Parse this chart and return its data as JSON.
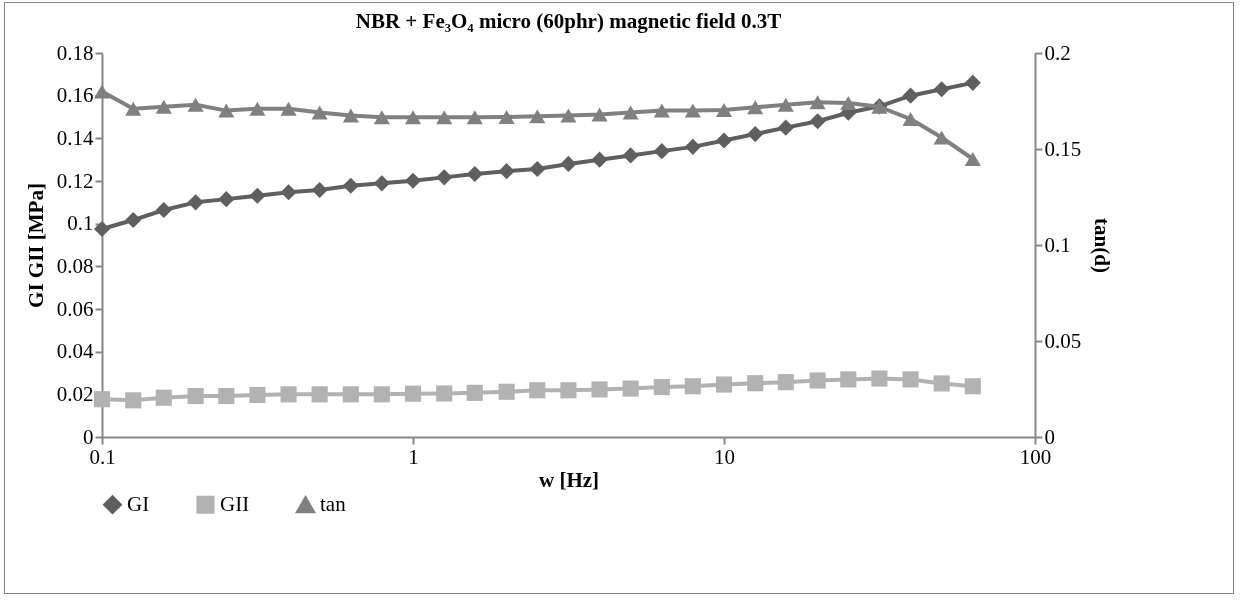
{
  "chart_data": {
    "type": "line",
    "title": "NBR + Fe₃O₄ micro (60phr) magnetic field 0.3T",
    "xlabel": "w [Hz]",
    "ylabel": "GI GII [MPa]",
    "y2label": "tan(d)",
    "x": [
      0.1,
      0.126,
      0.158,
      0.2,
      0.251,
      0.316,
      0.398,
      0.501,
      0.631,
      0.794,
      1,
      1.26,
      1.58,
      2,
      2.51,
      3.16,
      3.98,
      5.01,
      6.31,
      7.94,
      10,
      12.6,
      15.8,
      20,
      25.1,
      31.6,
      39.8,
      50.1,
      63.1
    ],
    "log": "x",
    "xlim": [
      0.1,
      100
    ],
    "xticks": [
      0.1,
      1,
      10,
      100
    ],
    "ylim": [
      0,
      0.18
    ],
    "yticks": [
      0,
      0.02,
      0.04,
      0.06,
      0.08,
      0.1,
      0.12,
      0.14,
      0.16,
      0.18
    ],
    "y2lim": [
      0,
      0.2
    ],
    "y2ticks": [
      0,
      0.05,
      0.1,
      0.15,
      0.2
    ],
    "legend": "bottom",
    "series": [
      {
        "name": "GI",
        "color": "#5f5f5f",
        "marker": "diamond",
        "values": [
          0.0975,
          0.1017,
          0.1064,
          0.11,
          0.1115,
          0.1131,
          0.1147,
          0.1158,
          0.1178,
          0.1189,
          0.1201,
          0.1217,
          0.1233,
          0.1246,
          0.1256,
          0.128,
          0.13,
          0.132,
          0.134,
          0.136,
          0.139,
          0.142,
          0.145,
          0.148,
          0.152,
          0.155,
          0.16,
          0.163,
          0.166
        ]
      },
      {
        "name": "GII",
        "color": "#b2b2b2",
        "marker": "square",
        "values": [
          0.0177,
          0.0172,
          0.0184,
          0.0192,
          0.0192,
          0.0197,
          0.02,
          0.02,
          0.02,
          0.02,
          0.0203,
          0.0204,
          0.0207,
          0.0212,
          0.0219,
          0.0219,
          0.0223,
          0.0227,
          0.0234,
          0.0238,
          0.0246,
          0.0252,
          0.0257,
          0.0265,
          0.027,
          0.0274,
          0.027,
          0.0251,
          0.0238
        ]
      },
      {
        "name": "tan",
        "color": "#808080",
        "marker": "triangle",
        "axis": "y2",
        "values": [
          0.18,
          0.171,
          0.172,
          0.173,
          0.17,
          0.171,
          0.171,
          0.169,
          0.1674,
          0.1665,
          0.1665,
          0.1665,
          0.1665,
          0.1667,
          0.167,
          0.1674,
          0.168,
          0.169,
          0.17,
          0.17,
          0.1703,
          0.1717,
          0.173,
          0.1743,
          0.174,
          0.172,
          0.1656,
          0.156,
          0.1448
        ]
      }
    ]
  }
}
